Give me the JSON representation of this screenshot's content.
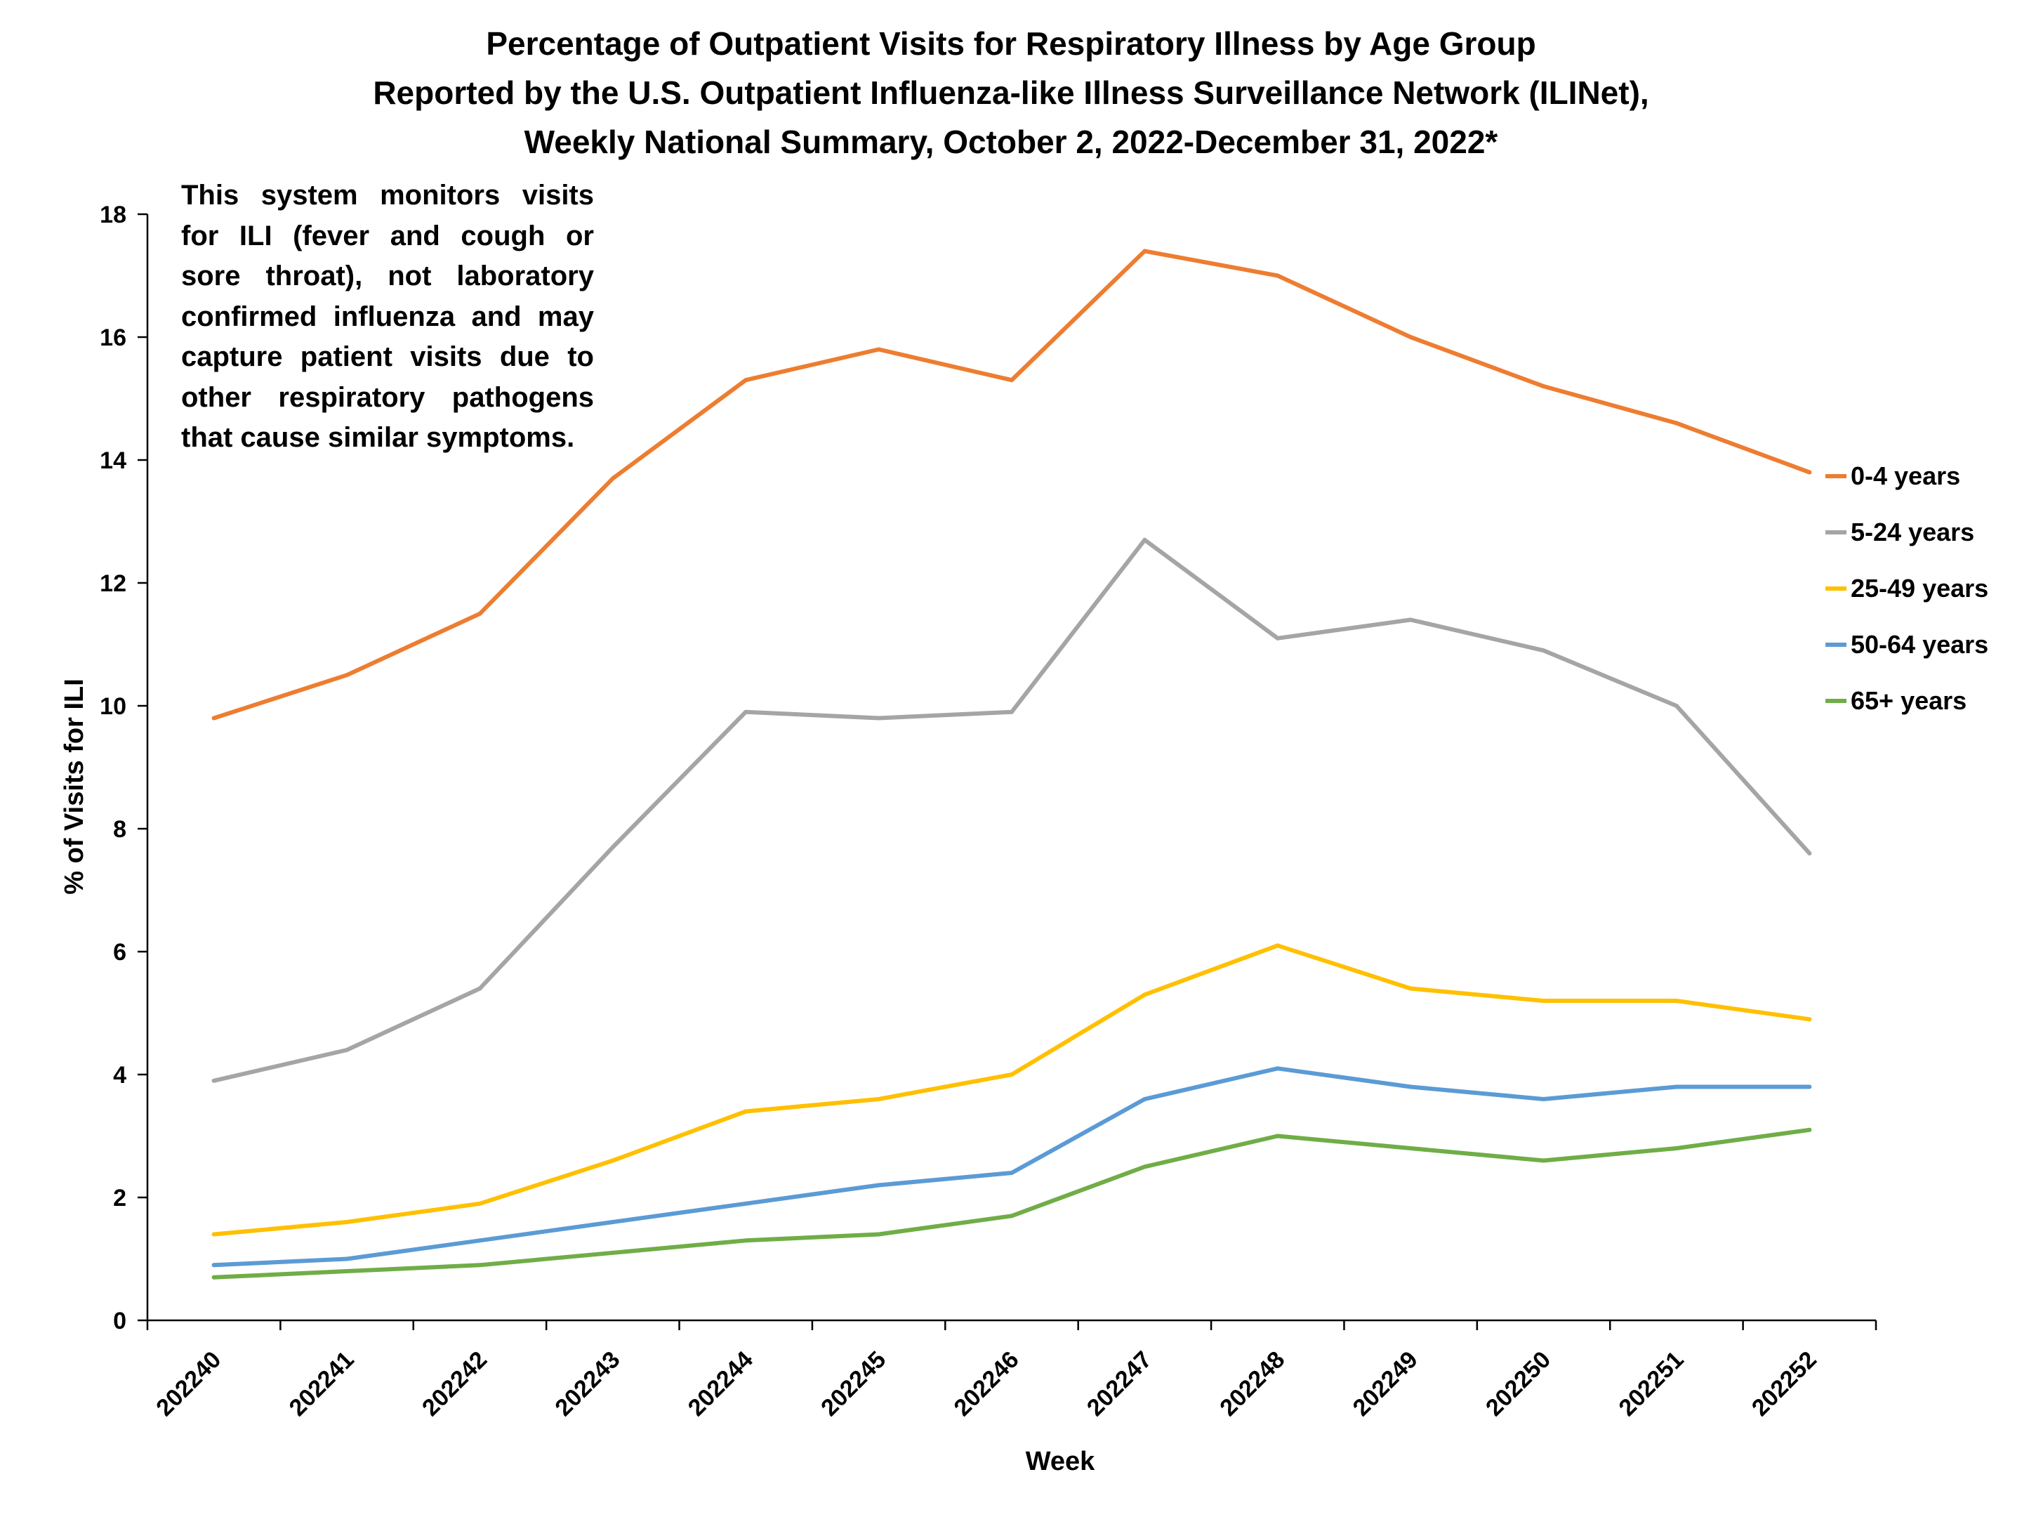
{
  "chart_data": {
    "type": "line",
    "title": [
      "Percentage of Outpatient Visits for Respiratory Illness by Age Group",
      "Reported by the U.S. Outpatient Influenza-like Illness Surveillance Network (ILINet),",
      "Weekly National Summary, October 2, 2022-December 31, 2022*"
    ],
    "xlabel": "Week",
    "ylabel": "% of Visits for ILI",
    "categories": [
      "202240",
      "202241",
      "202242",
      "202243",
      "202244",
      "202245",
      "202246",
      "202247",
      "202248",
      "202249",
      "202250",
      "202251",
      "202252"
    ],
    "ylim": [
      0,
      18
    ],
    "yticks": [
      0,
      2,
      4,
      6,
      8,
      10,
      12,
      14,
      16,
      18
    ],
    "grid": false,
    "legend_position": "right",
    "annotation": "This system monitors visits for ILI (fever and cough or sore throat), not laboratory confirmed influenza and may capture patient visits due to other respiratory pathogens that cause similar symptoms.",
    "series": [
      {
        "name": "0-4 years",
        "color": "#ED7D31",
        "values": [
          9.8,
          10.5,
          11.5,
          13.7,
          15.3,
          15.8,
          15.3,
          17.4,
          17.0,
          16.0,
          15.2,
          14.6,
          13.8
        ]
      },
      {
        "name": "5-24 years",
        "color": "#A5A5A5",
        "values": [
          3.9,
          4.4,
          5.4,
          7.7,
          9.9,
          9.8,
          9.9,
          12.7,
          11.1,
          11.4,
          10.9,
          10.0,
          7.6
        ]
      },
      {
        "name": "25-49 years",
        "color": "#FFC000",
        "values": [
          1.4,
          1.6,
          1.9,
          2.6,
          3.4,
          3.6,
          4.0,
          5.3,
          6.1,
          5.4,
          5.2,
          5.2,
          4.9
        ]
      },
      {
        "name": "50-64 years",
        "color": "#5B9BD5",
        "values": [
          0.9,
          1.0,
          1.3,
          1.6,
          1.9,
          2.2,
          2.4,
          3.6,
          4.1,
          3.8,
          3.6,
          3.8,
          3.8
        ]
      },
      {
        "name": "65+ years",
        "color": "#70AD47",
        "values": [
          0.7,
          0.8,
          0.9,
          1.1,
          1.3,
          1.4,
          1.7,
          2.5,
          3.0,
          2.8,
          2.6,
          2.8,
          3.1
        ]
      }
    ]
  }
}
